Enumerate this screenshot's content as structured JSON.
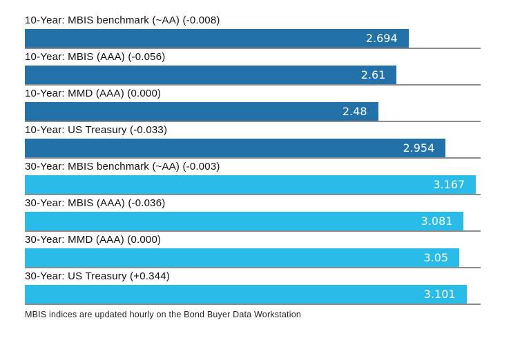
{
  "chart_data": {
    "type": "bar",
    "orientation": "horizontal",
    "title": "",
    "xlabel": "",
    "ylabel": "",
    "xlim": [
      0,
      3.2
    ],
    "grid": false,
    "legend": "none",
    "bars": [
      {
        "label": "10-Year: MBIS benchmark (~AA) (-0.008)",
        "value": 2.694,
        "value_label": "2.694",
        "group": "10-year"
      },
      {
        "label": "10-Year: MBIS (AAA) (-0.056)",
        "value": 2.61,
        "value_label": "2.61",
        "group": "10-year"
      },
      {
        "label": "10-Year: MMD (AAA) (0.000)",
        "value": 2.48,
        "value_label": "2.48",
        "group": "10-year"
      },
      {
        "label": "10-Year: US Treasury (-0.033)",
        "value": 2.954,
        "value_label": "2.954",
        "group": "10-year"
      },
      {
        "label": "30-Year: MBIS benchmark (~AA) (-0.003)",
        "value": 3.167,
        "value_label": "3.167",
        "group": "30-year"
      },
      {
        "label": "30-Year: MBIS (AAA) (-0.036)",
        "value": 3.081,
        "value_label": "3.081",
        "group": "30-year"
      },
      {
        "label": "30-Year: MMD (AAA) (0.000)",
        "value": 3.05,
        "value_label": "3.05",
        "group": "30-year"
      },
      {
        "label": "30-Year: US Treasury (+0.344)",
        "value": 3.101,
        "value_label": "3.101",
        "group": "30-year"
      }
    ],
    "colors": {
      "10-year": "#2271a8",
      "30-year": "#29bce8"
    },
    "separator_color": "#8c8c8c",
    "value_text_color": "#ffffff",
    "label_text_color": "#111111",
    "footnote": "MBIS indices are updated hourly on the Bond Buyer Data Workstation"
  }
}
